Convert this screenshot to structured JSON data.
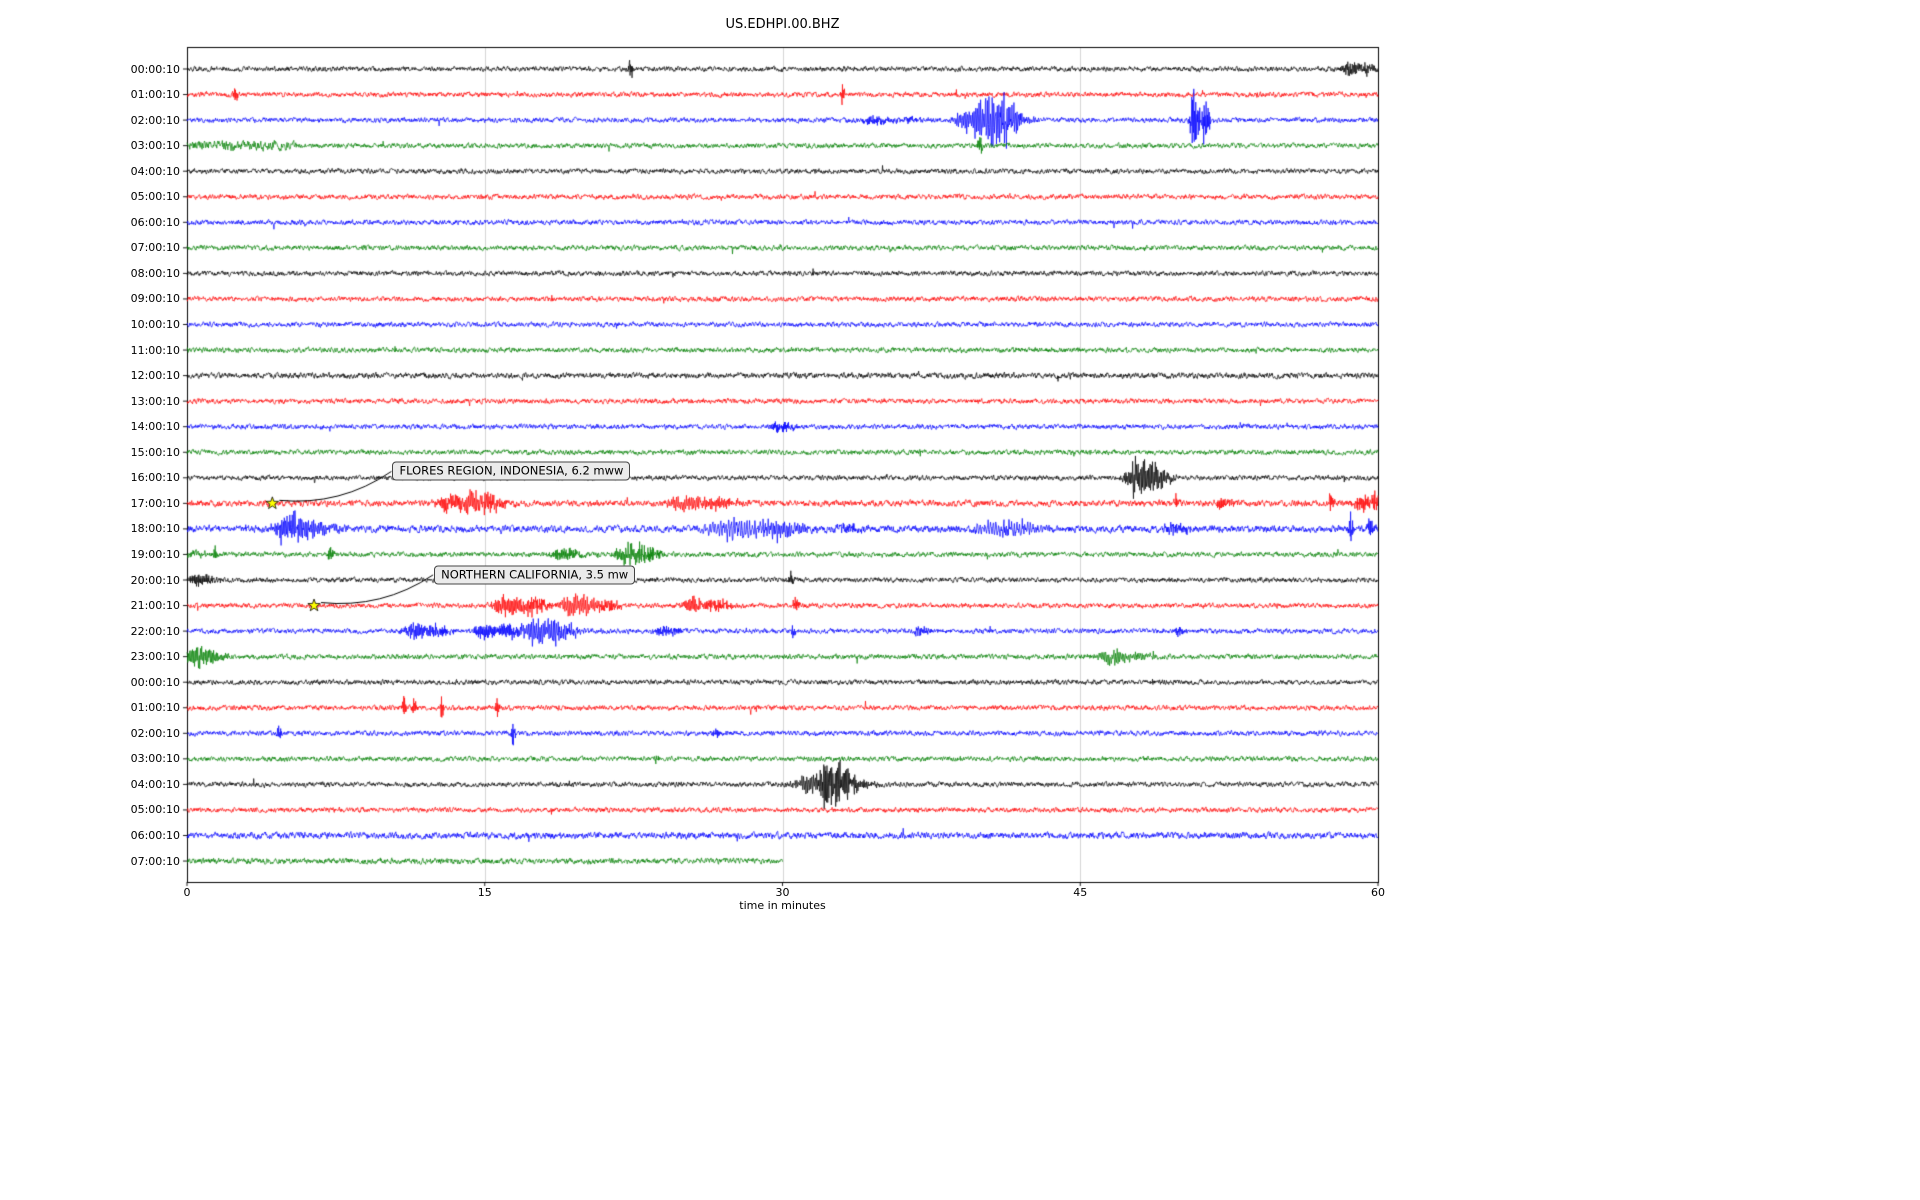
{
  "chart": {
    "title": "US.EDHPI.00.BHZ",
    "xlabel": "time in minutes"
  },
  "chart_data": {
    "type": "line",
    "subtype": "helicorder-day-plot",
    "title": "US.EDHPI.00.BHZ",
    "xlabel": "time in minutes",
    "x_range_minutes": [
      0,
      60
    ],
    "xticks": [
      0,
      15,
      30,
      45,
      60
    ],
    "grid": "vertical-only",
    "trace_color_cycle": [
      "#000000",
      "#ff0000",
      "#0000ff",
      "#008000"
    ],
    "marker_color": "#ffff00",
    "rows": [
      {
        "label": "00:00:10",
        "color": "#000000",
        "events": [
          {
            "t": 22.3,
            "a": 13,
            "w": 0.05
          },
          {
            "t": 58.7,
            "a": 7,
            "w": 0.35
          }
        ]
      },
      {
        "label": "01:00:10",
        "color": "#ff0000",
        "events": [
          {
            "t": 2.4,
            "a": 7,
            "w": 0.05
          },
          {
            "t": 33.0,
            "a": -12,
            "w": 0.04
          }
        ]
      },
      {
        "label": "02:00:10",
        "color": "#0000ff",
        "events": [
          {
            "t": 34.5,
            "a": 4,
            "w": 0.3
          },
          {
            "t": 36.2,
            "a": 3,
            "w": 0.2
          },
          {
            "t": 39.4,
            "a": 9,
            "w": 0.5
          },
          {
            "t": 40.3,
            "a": 20,
            "w": 0.5
          },
          {
            "t": 41.0,
            "a": 13,
            "w": 0.3
          },
          {
            "t": 50.7,
            "a": -26,
            "w": 0.12
          },
          {
            "t": 51.2,
            "a": 22,
            "w": 0.1
          }
        ]
      },
      {
        "label": "03:00:10",
        "color": "#008000",
        "segments": [
          {
            "t0": 0,
            "t1": 5.5,
            "mult": 2.0
          }
        ],
        "events": [
          {
            "t": 39.9,
            "a": 9,
            "w": 0.06
          }
        ]
      },
      {
        "label": "04:00:10",
        "color": "#000000",
        "events": []
      },
      {
        "label": "05:00:10",
        "color": "#ff0000",
        "events": []
      },
      {
        "label": "06:00:10",
        "color": "#0000ff",
        "events": []
      },
      {
        "label": "07:00:10",
        "color": "#008000",
        "events": []
      },
      {
        "label": "08:00:10",
        "color": "#000000",
        "events": []
      },
      {
        "label": "09:00:10",
        "color": "#ff0000",
        "events": []
      },
      {
        "label": "10:00:10",
        "color": "#0000ff",
        "events": []
      },
      {
        "label": "11:00:10",
        "color": "#008000",
        "events": []
      },
      {
        "label": "12:00:10",
        "color": "#000000",
        "noise": 1.15,
        "events": []
      },
      {
        "label": "13:00:10",
        "color": "#ff0000",
        "events": []
      },
      {
        "label": "14:00:10",
        "color": "#0000ff",
        "events": [
          {
            "t": 29.8,
            "a": 5,
            "w": 0.25
          }
        ]
      },
      {
        "label": "15:00:10",
        "color": "#008000",
        "events": []
      },
      {
        "label": "16:00:10",
        "color": "#000000",
        "events": [
          {
            "t": 47.9,
            "a": 20,
            "w": 0.4
          }
        ]
      },
      {
        "label": "17:00:10",
        "color": "#ff0000",
        "noise": 1.25,
        "events": [
          {
            "t": 13.1,
            "a": 8,
            "w": 0.35
          },
          {
            "t": 14.4,
            "a": 9,
            "w": 0.45
          },
          {
            "t": 15.1,
            "a": 6,
            "w": 0.3
          },
          {
            "t": 24.9,
            "a": 6,
            "w": 0.5
          },
          {
            "t": 26.6,
            "a": 5,
            "w": 0.4
          },
          {
            "t": 49.8,
            "a": -7,
            "w": 0.05
          },
          {
            "t": 52.1,
            "a": 5,
            "w": 0.2
          },
          {
            "t": 57.6,
            "a": -11,
            "w": 0.05
          },
          {
            "t": 59.2,
            "a": 7,
            "w": 0.3
          },
          {
            "t": 59.8,
            "a": 9,
            "w": 0.12
          }
        ]
      },
      {
        "label": "18:00:10",
        "color": "#0000ff",
        "noise": 1.4,
        "events": [
          {
            "t": 4.9,
            "a": 12,
            "w": 0.4
          },
          {
            "t": 5.7,
            "a": 8,
            "w": 0.5
          },
          {
            "t": 27.4,
            "a": 9,
            "w": 0.8
          },
          {
            "t": 29.6,
            "a": 7,
            "w": 0.5
          },
          {
            "t": 33.1,
            "a": 4,
            "w": 0.3
          },
          {
            "t": 40.6,
            "a": 6,
            "w": 0.8
          },
          {
            "t": 41.6,
            "a": 5,
            "w": 0.4
          },
          {
            "t": 49.6,
            "a": 5,
            "w": 0.3
          },
          {
            "t": 58.6,
            "a": -13,
            "w": 0.05
          },
          {
            "t": 59.6,
            "a": 11,
            "w": 0.08
          }
        ]
      },
      {
        "label": "19:00:10",
        "color": "#008000",
        "segments": [
          {
            "t0": 0,
            "t1": 1,
            "mult": 1.8
          }
        ],
        "events": [
          {
            "t": 1.4,
            "a": -7,
            "w": 0.05
          },
          {
            "t": 7.2,
            "a": 7,
            "w": 0.06
          },
          {
            "t": 18.8,
            "a": 7,
            "w": 0.3
          },
          {
            "t": 22.1,
            "a": 9,
            "w": 0.35
          },
          {
            "t": 23.0,
            "a": 7,
            "w": 0.25
          }
        ]
      },
      {
        "label": "20:00:10",
        "color": "#000000",
        "events": [
          {
            "t": 0.5,
            "a": 5,
            "w": 0.3
          },
          {
            "t": 30.4,
            "a": -6,
            "w": 0.05
          }
        ]
      },
      {
        "label": "21:00:10",
        "color": "#ff0000",
        "events": [
          {
            "t": 16.0,
            "a": 9,
            "w": 0.4
          },
          {
            "t": 17.4,
            "a": 7,
            "w": 0.3
          },
          {
            "t": 19.4,
            "a": 9,
            "w": 0.5
          },
          {
            "t": 21.0,
            "a": 5,
            "w": 0.3
          },
          {
            "t": 25.4,
            "a": 7,
            "w": 0.4
          },
          {
            "t": 26.5,
            "a": 6,
            "w": 0.3
          },
          {
            "t": 30.6,
            "a": 9,
            "w": 0.06
          }
        ]
      },
      {
        "label": "22:00:10",
        "color": "#0000ff",
        "events": [
          {
            "t": 11.4,
            "a": 7,
            "w": 0.35
          },
          {
            "t": 12.6,
            "a": 5,
            "w": 0.25
          },
          {
            "t": 14.9,
            "a": 7,
            "w": 0.3
          },
          {
            "t": 16.2,
            "a": 6,
            "w": 0.3
          },
          {
            "t": 17.6,
            "a": 13,
            "w": 0.5
          },
          {
            "t": 18.6,
            "a": 7,
            "w": 0.3
          },
          {
            "t": 23.9,
            "a": 4,
            "w": 0.3
          },
          {
            "t": 30.5,
            "a": 7,
            "w": 0.05
          },
          {
            "t": 36.9,
            "a": 4,
            "w": 0.2
          },
          {
            "t": 49.9,
            "a": 5,
            "w": 0.1
          }
        ]
      },
      {
        "label": "23:00:10",
        "color": "#008000",
        "events": [
          {
            "t": 0.4,
            "a": 9,
            "w": 0.4
          },
          {
            "t": 46.6,
            "a": 6,
            "w": 0.5
          }
        ]
      },
      {
        "label": "00:00:10",
        "color": "#000000",
        "events": []
      },
      {
        "label": "01:00:10",
        "color": "#ff0000",
        "events": [
          {
            "t": 10.9,
            "a": -13,
            "w": 0.04
          },
          {
            "t": 11.4,
            "a": -9,
            "w": 0.04
          },
          {
            "t": 12.8,
            "a": -11,
            "w": 0.04
          },
          {
            "t": 15.6,
            "a": -11,
            "w": 0.04
          }
        ]
      },
      {
        "label": "02:00:10",
        "color": "#0000ff",
        "events": [
          {
            "t": 4.6,
            "a": -9,
            "w": 0.05
          },
          {
            "t": 16.4,
            "a": -11,
            "w": 0.05
          },
          {
            "t": 26.6,
            "a": 5,
            "w": 0.08
          }
        ]
      },
      {
        "label": "03:00:10",
        "color": "#008000",
        "events": [
          {
            "t": 23.6,
            "a": 4,
            "w": 0.06
          }
        ]
      },
      {
        "label": "04:00:10",
        "color": "#000000",
        "events": [
          {
            "t": 31.3,
            "a": 8,
            "w": 0.5
          },
          {
            "t": 32.3,
            "a": 20,
            "w": 0.35
          },
          {
            "t": 33.1,
            "a": 8,
            "w": 0.4
          }
        ]
      },
      {
        "label": "05:00:10",
        "color": "#ff0000",
        "events": []
      },
      {
        "label": "06:00:10",
        "color": "#0000ff",
        "noise": 1.3,
        "events": []
      },
      {
        "label": "07:00:10",
        "color": "#008000",
        "end": 30,
        "noise": 1.15,
        "events": []
      }
    ],
    "annotations": [
      {
        "text": "FLORES REGION, INDONESIA, 6.2 mww",
        "marker": "yellow-star",
        "marker_minute": 4.3,
        "marker_row": 17,
        "label_minute": 10.3,
        "label_row": 15.75
      },
      {
        "text": "NORTHERN CALIFORNIA, 3.5 mw",
        "marker": "yellow-star",
        "marker_minute": 6.4,
        "marker_row": 21,
        "label_minute": 12.4,
        "label_row": 19.8
      }
    ]
  }
}
